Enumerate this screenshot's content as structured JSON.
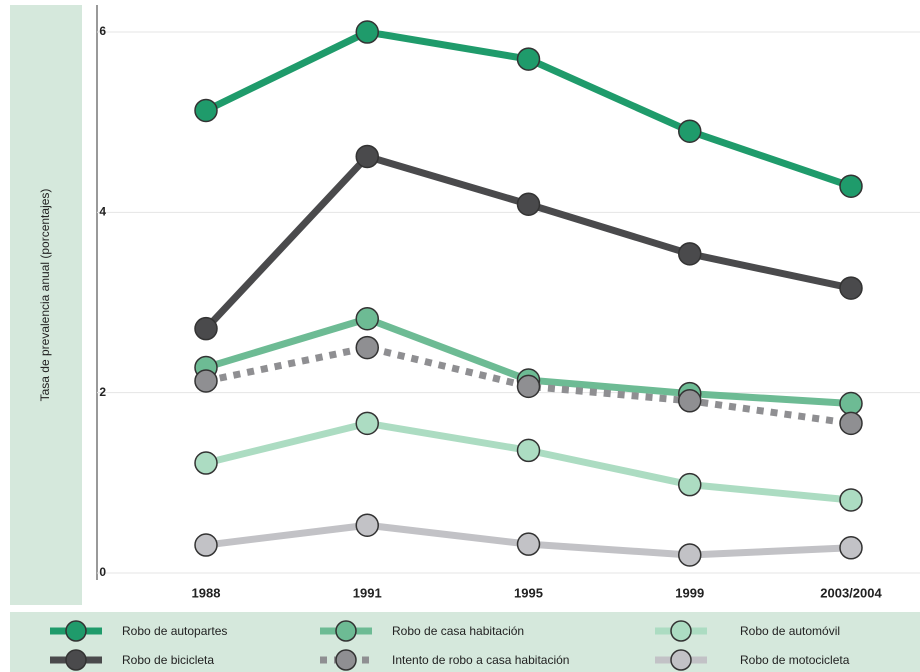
{
  "chart_data": {
    "type": "line",
    "y_label": "Tasa de prevalencia anual (porcentajes)",
    "categories": [
      "1988",
      "1991",
      "1995",
      "1999",
      "2003/2004"
    ],
    "ylim": [
      0,
      6.3
    ],
    "yticks": [
      0,
      2,
      4,
      6
    ],
    "grid": true,
    "series": [
      {
        "name": "Robo de autopartes",
        "color": "#1f9b6b",
        "line_style": "solid",
        "values": [
          5.13,
          6.0,
          5.7,
          4.9,
          4.29
        ]
      },
      {
        "name": "Robo de casa habitación",
        "color": "#6dbb94",
        "line_style": "solid",
        "values": [
          2.28,
          2.82,
          2.14,
          1.99,
          1.88
        ]
      },
      {
        "name": "Robo de automóvil",
        "color": "#acdcc2",
        "line_style": "solid",
        "values": [
          1.22,
          1.66,
          1.36,
          0.98,
          0.81
        ]
      },
      {
        "name": "Robo de bicicleta",
        "color": "#4a4a4c",
        "line_style": "solid",
        "values": [
          2.71,
          4.62,
          4.09,
          3.54,
          3.16
        ]
      },
      {
        "name": "Intento de robo a casa habitación",
        "color": "#8f8f92",
        "line_style": "dotted",
        "values": [
          2.13,
          2.5,
          2.07,
          1.91,
          1.66
        ]
      },
      {
        "name": "Robo de motocicleta",
        "color": "#c2c2c6",
        "line_style": "solid",
        "values": [
          0.31,
          0.53,
          0.32,
          0.2,
          0.28
        ]
      }
    ]
  }
}
